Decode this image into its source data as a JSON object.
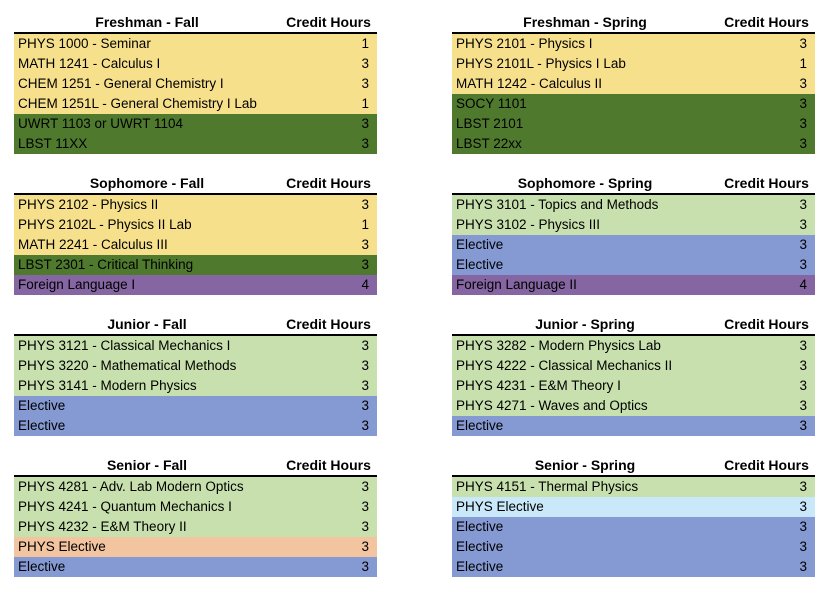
{
  "credit_header": "Credit Hours",
  "palette": {
    "yellow": "#F7E08C",
    "dark_green": "#4F7A2D",
    "light_green": "#C7E0AD",
    "blue": "#8599D3",
    "purple": "#8566A3",
    "peach": "#F3C4A0",
    "light_blue": "#C9E9FA"
  },
  "blocks": [
    {
      "title": "Freshman - Fall",
      "rows": [
        {
          "course": "PHYS 1000 - Seminar",
          "credits": "1",
          "color": "yellow"
        },
        {
          "course": "MATH 1241 - Calculus I",
          "credits": "3",
          "color": "yellow"
        },
        {
          "course": "CHEM 1251 - General Chemistry I",
          "credits": "3",
          "color": "yellow"
        },
        {
          "course": "CHEM 1251L - General Chemistry I Lab",
          "credits": "1",
          "color": "yellow"
        },
        {
          "course": "UWRT 1103 or UWRT 1104",
          "credits": "3",
          "color": "dark_green"
        },
        {
          "course": "LBST 11XX",
          "credits": "3",
          "color": "dark_green"
        }
      ]
    },
    {
      "title": "Freshman - Spring",
      "rows": [
        {
          "course": "PHYS 2101 - Physics I",
          "credits": "3",
          "color": "yellow"
        },
        {
          "course": "PHYS 2101L - Physics I Lab",
          "credits": "1",
          "color": "yellow"
        },
        {
          "course": "MATH 1242 - Calculus II",
          "credits": "3",
          "color": "yellow"
        },
        {
          "course": "SOCY 1101",
          "credits": "3",
          "color": "dark_green"
        },
        {
          "course": "LBST 2101",
          "credits": "3",
          "color": "dark_green"
        },
        {
          "course": "LBST 22xx",
          "credits": "3",
          "color": "dark_green"
        }
      ]
    },
    {
      "title": "Sophomore - Fall",
      "rows": [
        {
          "course": "PHYS 2102 - Physics II",
          "credits": "3",
          "color": "yellow"
        },
        {
          "course": "PHYS 2102L - Physics II Lab",
          "credits": "1",
          "color": "yellow"
        },
        {
          "course": "MATH 2241 - Calculus III",
          "credits": "3",
          "color": "yellow"
        },
        {
          "course": "LBST 2301 - Critical Thinking",
          "credits": "3",
          "color": "dark_green"
        },
        {
          "course": "Foreign Language I",
          "credits": "4",
          "color": "purple"
        }
      ]
    },
    {
      "title": "Sophomore - Spring",
      "rows": [
        {
          "course": "PHYS 3101 - Topics and Methods",
          "credits": "3",
          "color": "light_green"
        },
        {
          "course": "PHYS 3102 - Physics III",
          "credits": "3",
          "color": "light_green"
        },
        {
          "course": "Elective",
          "credits": "3",
          "color": "blue"
        },
        {
          "course": "Elective",
          "credits": "3",
          "color": "blue"
        },
        {
          "course": "Foreign Language II",
          "credits": "4",
          "color": "purple"
        }
      ]
    },
    {
      "title": "Junior - Fall",
      "rows": [
        {
          "course": "PHYS 3121 - Classical Mechanics I",
          "credits": "3",
          "color": "light_green"
        },
        {
          "course": "PHYS 3220 - Mathematical Methods",
          "credits": "3",
          "color": "light_green"
        },
        {
          "course": "PHYS 3141 - Modern Physics",
          "credits": "3",
          "color": "light_green"
        },
        {
          "course": "Elective",
          "credits": "3",
          "color": "blue"
        },
        {
          "course": "Elective",
          "credits": "3",
          "color": "blue"
        }
      ]
    },
    {
      "title": "Junior - Spring",
      "rows": [
        {
          "course": "PHYS 3282 - Modern Physics Lab",
          "credits": "3",
          "color": "light_green"
        },
        {
          "course": "PHYS 4222 - Classical Mechanics II",
          "credits": "3",
          "color": "light_green"
        },
        {
          "course": "PHYS 4231 - E&M Theory I",
          "credits": "3",
          "color": "light_green"
        },
        {
          "course": "PHYS 4271 - Waves and Optics",
          "credits": "3",
          "color": "light_green"
        },
        {
          "course": "Elective",
          "credits": "3",
          "color": "blue"
        }
      ]
    },
    {
      "title": "Senior - Fall",
      "rows": [
        {
          "course": "PHYS 4281 - Adv. Lab Modern Optics",
          "credits": "3",
          "color": "light_green"
        },
        {
          "course": "PHYS 4241 - Quantum Mechanics I",
          "credits": "3",
          "color": "light_green"
        },
        {
          "course": "PHYS 4232 - E&M Theory II",
          "credits": "3",
          "color": "light_green"
        },
        {
          "course": "PHYS Elective",
          "credits": "3",
          "color": "peach"
        },
        {
          "course": "Elective",
          "credits": "3",
          "color": "blue"
        }
      ]
    },
    {
      "title": "Senior - Spring",
      "rows": [
        {
          "course": "PHYS 4151 - Thermal Physics",
          "credits": "3",
          "color": "light_green"
        },
        {
          "course": "PHYS Elective",
          "credits": "3",
          "color": "light_blue"
        },
        {
          "course": "Elective",
          "credits": "3",
          "color": "blue"
        },
        {
          "course": "Elective",
          "credits": "3",
          "color": "blue"
        },
        {
          "course": "Elective",
          "credits": "3",
          "color": "blue"
        }
      ]
    }
  ]
}
